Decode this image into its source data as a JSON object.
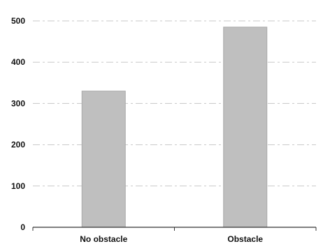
{
  "chart_data": {
    "type": "bar",
    "categories": [
      "No obstacle",
      "Obstacle"
    ],
    "values": [
      330,
      485
    ],
    "ylim": [
      0,
      500
    ],
    "yticks": [
      0,
      100,
      200,
      300,
      400,
      500
    ],
    "title": "",
    "xlabel": "",
    "ylabel": "",
    "grid": true,
    "legend": "none",
    "colors": {
      "bar": "#bfbfbf",
      "bar_edge": "#a8a8a8",
      "grid": "#c8c8c8",
      "axis": "#333333"
    }
  }
}
